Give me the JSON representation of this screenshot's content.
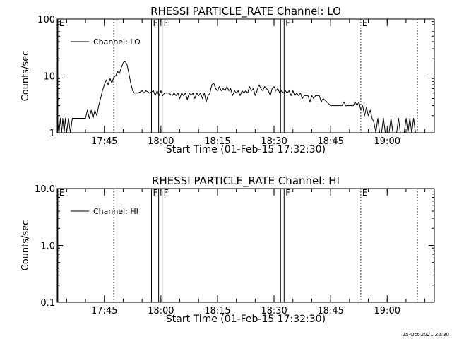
{
  "footer": {
    "timestamp": "25-Oct-2021 22:30"
  },
  "chart_data": [
    {
      "type": "line",
      "title": "RHESSI PARTICLE_RATE Channel: LO",
      "xlabel": "Start Time (01-Feb-15 17:32:30)",
      "ylabel": "Counts/sec",
      "y_scale": "log",
      "ylim": [
        1,
        100
      ],
      "y_ticks": [
        {
          "value": 1,
          "label": "1"
        },
        {
          "value": 10,
          "label": "10"
        },
        {
          "value": 100,
          "label": "100"
        }
      ],
      "xlim": [
        "17:32:30",
        "19:12:30"
      ],
      "x_ticks": [
        {
          "time": "17:45",
          "label": "17:45"
        },
        {
          "time": "18:00",
          "label": "18:00"
        },
        {
          "time": "18:15",
          "label": "18:15"
        },
        {
          "time": "18:30",
          "label": "18:30"
        },
        {
          "time": "18:45",
          "label": "18:45"
        },
        {
          "time": "19:00",
          "label": "19:00"
        }
      ],
      "legend": {
        "position": "top-left",
        "entries": [
          "Channel: LO"
        ]
      },
      "grid": false,
      "markers": [
        {
          "time": "17:32:40",
          "label": "E",
          "style": "solid-edge"
        },
        {
          "time": "17:47:30",
          "label": "",
          "style": "dotted"
        },
        {
          "time": "17:57:30",
          "label": "F",
          "style": "solid"
        },
        {
          "time": "18:00:20",
          "label": "F",
          "style": "solid-pair"
        },
        {
          "time": "18:32:40",
          "label": "F",
          "style": "solid-pair"
        },
        {
          "time": "18:53:00",
          "label": "E",
          "style": "dotted"
        },
        {
          "time": "19:08:00",
          "label": "",
          "style": "dotted"
        }
      ],
      "series": [
        {
          "name": "Channel: LO",
          "points": [
            [
              "17:32:30",
              1.8
            ],
            [
              "17:33:00",
              1.0
            ],
            [
              "17:33:20",
              1.8
            ],
            [
              "17:33:40",
              1.0
            ],
            [
              "17:34:00",
              1.8
            ],
            [
              "17:34:20",
              1.0
            ],
            [
              "17:34:40",
              1.8
            ],
            [
              "17:35:00",
              1.0
            ],
            [
              "17:35:30",
              1.8
            ],
            [
              "17:36:00",
              1.0
            ],
            [
              "17:36:30",
              1.8
            ],
            [
              "17:38:00",
              1.8
            ],
            [
              "17:40:00",
              1.8
            ],
            [
              "17:40:30",
              2.5
            ],
            [
              "17:41:00",
              1.8
            ],
            [
              "17:41:30",
              2.5
            ],
            [
              "17:42:00",
              1.8
            ],
            [
              "17:42:30",
              2.5
            ],
            [
              "17:43:00",
              2.0
            ],
            [
              "17:43:30",
              3.0
            ],
            [
              "17:44:00",
              4.0
            ],
            [
              "17:44:30",
              5.5
            ],
            [
              "17:45:00",
              7.0
            ],
            [
              "17:45:30",
              8.5
            ],
            [
              "17:46:00",
              7.0
            ],
            [
              "17:46:30",
              9.0
            ],
            [
              "17:47:00",
              7.5
            ],
            [
              "17:47:30",
              9.5
            ],
            [
              "17:48:00",
              10.0
            ],
            [
              "17:48:30",
              12.0
            ],
            [
              "17:49:00",
              11.0
            ],
            [
              "17:49:30",
              14.0
            ],
            [
              "17:50:00",
              17.0
            ],
            [
              "17:50:30",
              18.0
            ],
            [
              "17:51:00",
              16.0
            ],
            [
              "17:51:30",
              11.0
            ],
            [
              "17:52:00",
              7.5
            ],
            [
              "17:52:30",
              5.5
            ],
            [
              "17:53:00",
              5.0
            ],
            [
              "17:54:00",
              5.0
            ],
            [
              "17:55:00",
              5.5
            ],
            [
              "17:55:30",
              5.0
            ],
            [
              "17:56:00",
              5.5
            ],
            [
              "17:57:00",
              5.0
            ],
            [
              "17:58:00",
              5.5
            ],
            [
              "17:58:30",
              4.5
            ],
            [
              "17:59:00",
              5.5
            ],
            [
              "17:59:30",
              4.5
            ],
            [
              "18:00:00",
              5.5
            ],
            [
              "18:00:30",
              4.5
            ],
            [
              "18:01:00",
              5.0
            ],
            [
              "18:02:00",
              5.0
            ],
            [
              "18:03:00",
              4.5
            ],
            [
              "18:03:30",
              5.0
            ],
            [
              "18:04:00",
              4.5
            ],
            [
              "18:04:30",
              5.0
            ],
            [
              "18:05:00",
              4.0
            ],
            [
              "18:05:30",
              5.0
            ],
            [
              "18:06:00",
              4.5
            ],
            [
              "18:06:30",
              5.0
            ],
            [
              "18:07:00",
              3.8
            ],
            [
              "18:07:30",
              5.0
            ],
            [
              "18:08:00",
              4.5
            ],
            [
              "18:08:30",
              5.0
            ],
            [
              "18:09:00",
              4.0
            ],
            [
              "18:09:30",
              5.0
            ],
            [
              "18:10:00",
              4.5
            ],
            [
              "18:10:30",
              5.0
            ],
            [
              "18:11:00",
              4.0
            ],
            [
              "18:11:30",
              5.0
            ],
            [
              "18:12:00",
              3.5
            ],
            [
              "18:12:30",
              4.5
            ],
            [
              "18:13:00",
              5.0
            ],
            [
              "18:13:30",
              7.0
            ],
            [
              "18:14:00",
              7.5
            ],
            [
              "18:14:30",
              6.0
            ],
            [
              "18:15:00",
              5.5
            ],
            [
              "18:15:30",
              6.5
            ],
            [
              "18:16:00",
              5.5
            ],
            [
              "18:16:30",
              6.0
            ],
            [
              "18:17:00",
              5.5
            ],
            [
              "18:17:30",
              6.5
            ],
            [
              "18:18:00",
              5.5
            ],
            [
              "18:18:30",
              6.0
            ],
            [
              "18:19:00",
              4.5
            ],
            [
              "18:19:30",
              5.5
            ],
            [
              "18:20:00",
              5.0
            ],
            [
              "18:20:30",
              5.5
            ],
            [
              "18:21:00",
              4.5
            ],
            [
              "18:21:30",
              5.5
            ],
            [
              "18:22:00",
              5.0
            ],
            [
              "18:22:30",
              5.5
            ],
            [
              "18:23:00",
              5.0
            ],
            [
              "18:23:30",
              6.5
            ],
            [
              "18:24:00",
              5.5
            ],
            [
              "18:24:30",
              6.0
            ],
            [
              "18:25:00",
              4.5
            ],
            [
              "18:25:30",
              5.5
            ],
            [
              "18:26:00",
              7.0
            ],
            [
              "18:26:30",
              6.0
            ],
            [
              "18:27:00",
              5.5
            ],
            [
              "18:27:30",
              6.5
            ],
            [
              "18:28:00",
              6.0
            ],
            [
              "18:28:30",
              5.5
            ],
            [
              "18:29:00",
              4.5
            ],
            [
              "18:29:30",
              6.0
            ],
            [
              "18:30:00",
              6.5
            ],
            [
              "18:30:30",
              5.5
            ],
            [
              "18:31:00",
              6.0
            ],
            [
              "18:31:30",
              5.0
            ],
            [
              "18:32:00",
              5.5
            ],
            [
              "18:32:30",
              5.0
            ],
            [
              "18:33:00",
              5.5
            ],
            [
              "18:33:30",
              5.0
            ],
            [
              "18:34:00",
              5.5
            ],
            [
              "18:34:30",
              4.5
            ],
            [
              "18:35:00",
              5.5
            ],
            [
              "18:35:30",
              4.5
            ],
            [
              "18:36:00",
              5.0
            ],
            [
              "18:36:30",
              4.5
            ],
            [
              "18:37:00",
              5.0
            ],
            [
              "18:37:30",
              4.0
            ],
            [
              "18:38:00",
              4.5
            ],
            [
              "18:39:00",
              4.5
            ],
            [
              "18:39:30",
              3.5
            ],
            [
              "18:40:00",
              4.5
            ],
            [
              "18:40:30",
              4.0
            ],
            [
              "18:41:00",
              4.5
            ],
            [
              "18:42:00",
              4.5
            ],
            [
              "18:42:30",
              3.5
            ],
            [
              "18:43:00",
              4.0
            ],
            [
              "18:44:00",
              3.5
            ],
            [
              "18:45:00",
              3.0
            ],
            [
              "18:46:00",
              3.0
            ],
            [
              "18:47:00",
              3.0
            ],
            [
              "18:48:00",
              3.0
            ],
            [
              "18:48:30",
              3.5
            ],
            [
              "18:49:00",
              3.0
            ],
            [
              "18:50:00",
              3.0
            ],
            [
              "18:51:00",
              3.0
            ],
            [
              "18:51:30",
              3.5
            ],
            [
              "18:52:00",
              3.0
            ],
            [
              "18:52:30",
              3.5
            ],
            [
              "18:53:00",
              2.5
            ],
            [
              "18:53:30",
              3.0
            ],
            [
              "18:54:00",
              2.0
            ],
            [
              "18:54:30",
              2.8
            ],
            [
              "18:55:00",
              2.0
            ],
            [
              "18:55:30",
              2.5
            ],
            [
              "18:56:00",
              1.8
            ],
            [
              "18:56:30",
              1.5
            ],
            [
              "18:57:00",
              1.0
            ],
            [
              "18:57:30",
              1.8
            ],
            [
              "18:58:00",
              1.0
            ],
            [
              "18:58:30",
              1.0
            ],
            [
              "18:59:00",
              1.8
            ],
            [
              "18:59:30",
              1.0
            ],
            [
              "19:00:30",
              1.0
            ],
            [
              "19:01:00",
              1.8
            ],
            [
              "19:01:30",
              1.0
            ],
            [
              "19:02:30",
              1.0
            ],
            [
              "19:03:00",
              1.8
            ],
            [
              "19:03:30",
              1.0
            ],
            [
              "19:04:30",
              1.0
            ],
            [
              "19:05:00",
              1.8
            ],
            [
              "19:05:30",
              1.0
            ],
            [
              "19:06:00",
              1.8
            ],
            [
              "19:06:30",
              1.0
            ],
            [
              "19:07:00",
              1.8
            ],
            [
              "19:07:30",
              1.0
            ]
          ]
        }
      ]
    },
    {
      "type": "line",
      "title": "RHESSI PARTICLE_RATE Channel: HI",
      "xlabel": "Start Time (01-Feb-15 17:32:30)",
      "ylabel": "Counts/sec",
      "y_scale": "log",
      "ylim": [
        0.1,
        10
      ],
      "y_ticks": [
        {
          "value": 0.1,
          "label": "0.1"
        },
        {
          "value": 1,
          "label": "1.0"
        },
        {
          "value": 10,
          "label": "10.0"
        }
      ],
      "xlim": [
        "17:32:30",
        "19:12:30"
      ],
      "x_ticks": [
        {
          "time": "17:45",
          "label": "17:45"
        },
        {
          "time": "18:00",
          "label": "18:00"
        },
        {
          "time": "18:15",
          "label": "18:15"
        },
        {
          "time": "18:30",
          "label": "18:30"
        },
        {
          "time": "18:45",
          "label": "18:45"
        },
        {
          "time": "19:00",
          "label": "19:00"
        }
      ],
      "legend": {
        "position": "top-left",
        "entries": [
          "Channel: HI"
        ]
      },
      "grid": false,
      "markers": [
        {
          "time": "17:32:40",
          "label": "E",
          "style": "solid-edge"
        },
        {
          "time": "17:47:30",
          "label": "",
          "style": "dotted"
        },
        {
          "time": "17:57:30",
          "label": "F",
          "style": "solid"
        },
        {
          "time": "18:00:20",
          "label": "F",
          "style": "solid-pair"
        },
        {
          "time": "18:32:40",
          "label": "F",
          "style": "solid-pair"
        },
        {
          "time": "18:53:00",
          "label": "E",
          "style": "dotted"
        },
        {
          "time": "19:08:00",
          "label": "",
          "style": "dotted"
        }
      ],
      "series": [
        {
          "name": "Channel: HI",
          "points": []
        }
      ]
    }
  ]
}
